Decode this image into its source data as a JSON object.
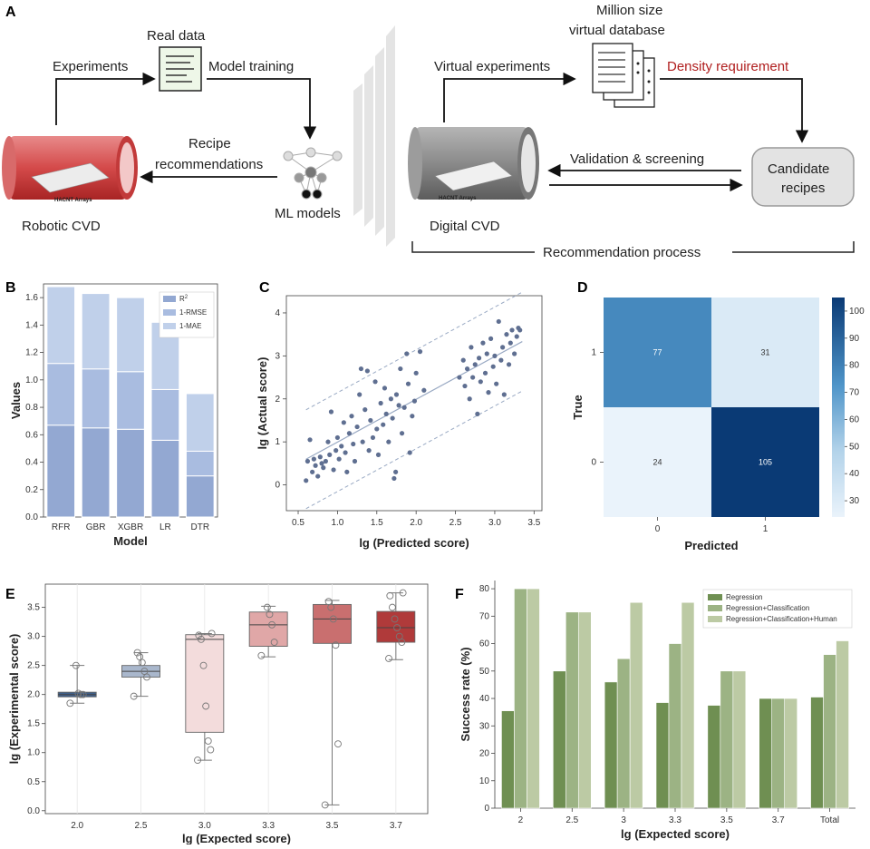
{
  "colors": {
    "bar_r2": "#93a8d2",
    "bar_rmse": "#a9bce0",
    "bar_mae": "#c0d0ea",
    "scatter_point": "#5f6f91",
    "cm_low": "#eaf3fb",
    "cm_high": "#0a3a75",
    "green_dark": "#6f8f52",
    "green_mid": "#9cb384",
    "green_light": "#bccaa4",
    "accent_red": "#b01e1e"
  },
  "panel_a": {
    "letter": "A",
    "real_data": "Real data",
    "experiments": "Experiments",
    "model_training": "Model training",
    "recipe_recommendations_line1": "Recipe",
    "recipe_recommendations_line2": "recommendations",
    "ml_models": "ML models",
    "robotic_cvd": "Robotic CVD",
    "hacnt_arrays_1": "HACNT Arrays",
    "hacnt_arrays_2": "HACNT Arrays",
    "million_size_line1": "Million size",
    "million_size_line2": "virtual database",
    "virtual_experiments": "Virtual experiments",
    "density_requirement": "Density requirement",
    "validation_screening": "Validation & screening",
    "candidate_line1": "Candidate",
    "candidate_line2": "recipes",
    "digital_cvd": "Digital CVD",
    "recommendation_process": "Recommendation process"
  },
  "chart_data": [
    {
      "panel": "B",
      "type": "bar",
      "stacked": true,
      "title": "",
      "xlabel": "Model",
      "ylabel": "Values",
      "ylim": [
        0,
        1.7
      ],
      "yticks": [
        0.0,
        0.2,
        0.4,
        0.6,
        0.8,
        1.0,
        1.2,
        1.4,
        1.6
      ],
      "categories": [
        "RFR",
        "GBR",
        "XGBR",
        "LR",
        "DTR"
      ],
      "series": [
        {
          "name": "R²",
          "legend_main": "R",
          "legend_sup": "2",
          "values": [
            0.67,
            0.65,
            0.64,
            0.56,
            0.3
          ]
        },
        {
          "name": "1-RMSE",
          "values": [
            0.45,
            0.43,
            0.42,
            0.37,
            0.18
          ]
        },
        {
          "name": "1-MAE",
          "values": [
            0.56,
            0.55,
            0.54,
            0.49,
            0.42
          ]
        }
      ],
      "legend_position": "top-right"
    },
    {
      "panel": "C",
      "type": "scatter",
      "xlabel": "lg (Predicted score)",
      "ylabel": "lg (Actual score)",
      "xlim": [
        0.35,
        3.6
      ],
      "ylim": [
        -0.6,
        4.4
      ],
      "xticks": [
        0.5,
        1.0,
        1.5,
        2.0,
        2.5,
        3.0,
        3.5
      ],
      "yticks": [
        0,
        1,
        2,
        3,
        4
      ],
      "fit_line": {
        "slope": 0.995,
        "intercept": 0.0,
        "band": 1.15
      },
      "points": [
        [
          0.6,
          0.1
        ],
        [
          0.62,
          0.55
        ],
        [
          0.65,
          1.05
        ],
        [
          0.68,
          0.3
        ],
        [
          0.7,
          0.6
        ],
        [
          0.72,
          0.45
        ],
        [
          0.75,
          0.2
        ],
        [
          0.78,
          0.65
        ],
        [
          0.8,
          0.5
        ],
        [
          0.82,
          0.4
        ],
        [
          0.85,
          0.55
        ],
        [
          0.88,
          1.0
        ],
        [
          0.9,
          0.7
        ],
        [
          0.92,
          1.7
        ],
        [
          0.95,
          0.35
        ],
        [
          0.98,
          0.8
        ],
        [
          1.0,
          1.1
        ],
        [
          1.02,
          0.6
        ],
        [
          1.05,
          0.9
        ],
        [
          1.08,
          1.45
        ],
        [
          1.1,
          0.75
        ],
        [
          1.12,
          0.3
        ],
        [
          1.15,
          1.2
        ],
        [
          1.18,
          1.6
        ],
        [
          1.2,
          0.95
        ],
        [
          1.22,
          0.55
        ],
        [
          1.25,
          1.35
        ],
        [
          1.28,
          2.1
        ],
        [
          1.3,
          2.7
        ],
        [
          1.32,
          1.0
        ],
        [
          1.35,
          1.75
        ],
        [
          1.38,
          2.65
        ],
        [
          1.4,
          0.8
        ],
        [
          1.42,
          1.5
        ],
        [
          1.45,
          1.1
        ],
        [
          1.48,
          2.4
        ],
        [
          1.5,
          1.3
        ],
        [
          1.52,
          0.7
        ],
        [
          1.55,
          1.9
        ],
        [
          1.58,
          1.4
        ],
        [
          1.6,
          2.25
        ],
        [
          1.62,
          1.65
        ],
        [
          1.65,
          1.0
        ],
        [
          1.68,
          2.0
        ],
        [
          1.7,
          1.55
        ],
        [
          1.72,
          0.15
        ],
        [
          1.74,
          0.3
        ],
        [
          1.75,
          2.1
        ],
        [
          1.78,
          1.85
        ],
        [
          1.8,
          2.7
        ],
        [
          1.82,
          1.2
        ],
        [
          1.85,
          1.8
        ],
        [
          1.88,
          3.05
        ],
        [
          1.9,
          2.35
        ],
        [
          1.92,
          0.75
        ],
        [
          1.95,
          1.6
        ],
        [
          1.98,
          1.95
        ],
        [
          2.0,
          2.6
        ],
        [
          2.05,
          3.1
        ],
        [
          2.1,
          2.2
        ],
        [
          2.55,
          2.5
        ],
        [
          2.6,
          2.9
        ],
        [
          2.62,
          2.3
        ],
        [
          2.65,
          2.7
        ],
        [
          2.68,
          2.0
        ],
        [
          2.7,
          3.2
        ],
        [
          2.72,
          2.5
        ],
        [
          2.75,
          2.8
        ],
        [
          2.78,
          1.65
        ],
        [
          2.8,
          2.95
        ],
        [
          2.82,
          2.4
        ],
        [
          2.85,
          3.3
        ],
        [
          2.88,
          2.6
        ],
        [
          2.9,
          3.05
        ],
        [
          2.92,
          2.15
        ],
        [
          2.95,
          3.4
        ],
        [
          2.98,
          2.75
        ],
        [
          3.0,
          3.0
        ],
        [
          3.02,
          2.35
        ],
        [
          3.05,
          3.8
        ],
        [
          3.08,
          2.9
        ],
        [
          3.1,
          3.2
        ],
        [
          3.12,
          2.1
        ],
        [
          3.15,
          3.5
        ],
        [
          3.18,
          2.8
        ],
        [
          3.2,
          3.3
        ],
        [
          3.22,
          3.6
        ],
        [
          3.25,
          3.05
        ],
        [
          3.28,
          3.45
        ],
        [
          3.3,
          3.65
        ],
        [
          3.32,
          3.6
        ]
      ]
    },
    {
      "panel": "D",
      "type": "heatmap",
      "xlabel": "Predicted",
      "ylabel": "True",
      "row_labels": [
        "1",
        "0"
      ],
      "col_labels": [
        "0",
        "1"
      ],
      "cells": [
        [
          "77",
          "31"
        ],
        [
          "24",
          "105"
        ]
      ],
      "values": [
        [
          77,
          31
        ],
        [
          24,
          105
        ]
      ],
      "colorbar_range": [
        24,
        105
      ],
      "colorbar_ticks": [
        30,
        40,
        50,
        60,
        70,
        80,
        90,
        100
      ]
    },
    {
      "panel": "E",
      "type": "box",
      "xlabel": "lg (Expected score)",
      "ylabel": "lg (Experimental score)",
      "ylim": [
        -0.05,
        3.9
      ],
      "yticks": [
        0.0,
        0.5,
        1.0,
        1.5,
        2.0,
        2.5,
        3.0,
        3.5
      ],
      "categories": [
        "2.0",
        "2.5",
        "3.0",
        "3.3",
        "3.5",
        "3.7"
      ],
      "box_colors": [
        "#3e5f8a",
        "#a9b7cc",
        "#f3dcdc",
        "#e0a7a7",
        "#c96f6f",
        "#b03a3a"
      ],
      "boxes": [
        {
          "min": 1.85,
          "q1": 1.96,
          "median": 2.0,
          "q3": 2.04,
          "max": 2.5,
          "points": [
            1.85,
            2.0,
            2.0,
            2.02,
            2.5
          ]
        },
        {
          "min": 1.97,
          "q1": 2.3,
          "median": 2.4,
          "q3": 2.5,
          "max": 2.72,
          "points": [
            1.97,
            2.3,
            2.4,
            2.55,
            2.65,
            2.72
          ]
        },
        {
          "min": 0.87,
          "q1": 1.35,
          "median": 2.95,
          "q3": 3.03,
          "max": 3.05,
          "points": [
            0.87,
            1.05,
            1.2,
            1.8,
            2.5,
            2.95,
            3.02,
            3.05
          ]
        },
        {
          "min": 2.65,
          "q1": 2.83,
          "median": 3.2,
          "q3": 3.42,
          "max": 3.52,
          "points": [
            2.67,
            2.9,
            3.2,
            3.38,
            3.5
          ]
        },
        {
          "min": 0.1,
          "q1": 2.88,
          "median": 3.3,
          "q3": 3.55,
          "max": 3.62,
          "points": [
            0.1,
            1.15,
            2.85,
            3.3,
            3.5,
            3.6
          ]
        },
        {
          "min": 2.6,
          "q1": 2.9,
          "median": 3.15,
          "q3": 3.43,
          "max": 3.75,
          "points": [
            2.62,
            2.9,
            3.0,
            3.15,
            3.3,
            3.5,
            3.7,
            3.75
          ]
        }
      ]
    },
    {
      "panel": "F",
      "type": "bar",
      "title": "",
      "xlabel": "lg (Expected score)",
      "ylabel": "Success rate (%)",
      "ylim": [
        0,
        83
      ],
      "yticks": [
        0,
        10,
        20,
        30,
        40,
        50,
        60,
        70,
        80
      ],
      "categories": [
        "2",
        "2.5",
        "3",
        "3.3",
        "3.5",
        "3.7",
        "Total"
      ],
      "series": [
        {
          "name": "Regression",
          "values": [
            35.5,
            50,
            46,
            38.5,
            37.5,
            40,
            40.5
          ]
        },
        {
          "name": "Regression+Classification",
          "values": [
            80,
            71.5,
            54.5,
            60,
            50,
            40,
            56
          ]
        },
        {
          "name": "Regression+Classification+Human",
          "values": [
            80,
            71.5,
            75,
            75,
            50,
            40,
            61
          ]
        }
      ],
      "legend_position": "top-right"
    }
  ]
}
